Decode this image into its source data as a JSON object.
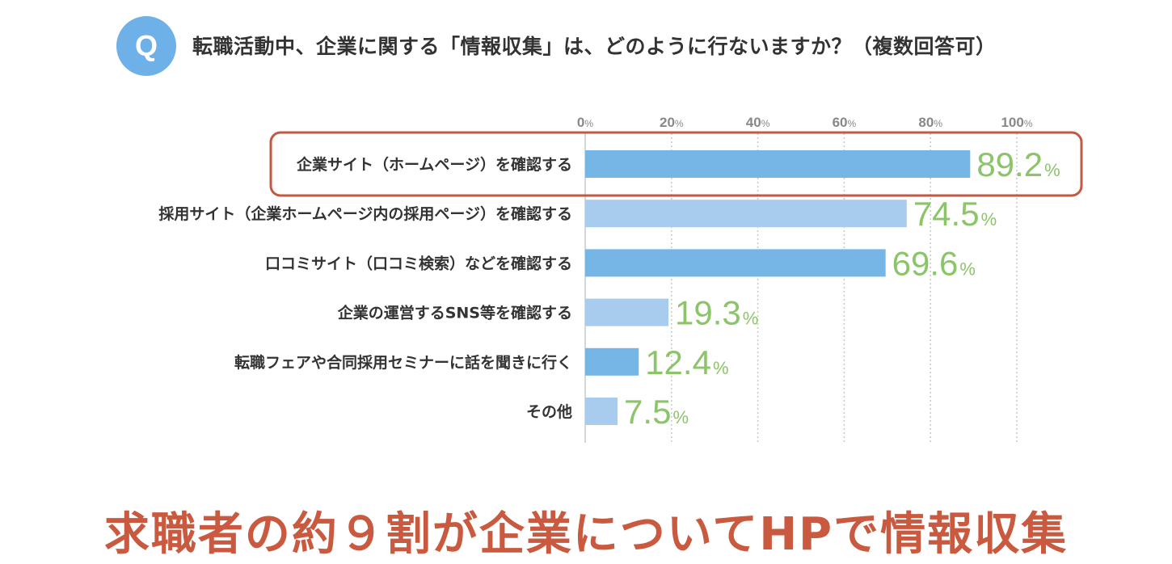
{
  "question_badge": "Q",
  "question": "転職活動中、企業に関する「情報収集」は、どのように行ないますか？（複数回答可）",
  "headline": "求職者の約９割が企業についてHPで情報収集",
  "colors": {
    "bar_dark": "#76b6e6",
    "bar_light": "#a8ccee",
    "value": "#8cc46a",
    "highlight": "#c05a45",
    "badge": "#6eb0e8"
  },
  "chart_data": {
    "type": "bar",
    "orientation": "horizontal",
    "categories": [
      "企業サイト（ホームページ）を確認する",
      "採用サイト（企業ホームページ内の採用ページ）を確認する",
      "口コミサイト（口コミ検索）などを確認する",
      "企業の運営するSNS等を確認する",
      "転職フェアや合同採用セミナーに話を聞きに行く",
      "その他"
    ],
    "values": [
      89.2,
      74.5,
      69.6,
      19.3,
      12.4,
      7.5
    ],
    "value_labels": [
      "89.2",
      "74.5",
      "69.6",
      "19.3",
      "12.4",
      "7.5"
    ],
    "value_unit": "%",
    "bar_shades": [
      "dark",
      "light",
      "dark",
      "light",
      "dark",
      "light"
    ],
    "highlighted_index": 0,
    "xlim": [
      0,
      100
    ],
    "xticks": [
      0,
      20,
      40,
      60,
      80,
      100
    ],
    "xtick_labels": [
      "0",
      "20",
      "40",
      "60",
      "80",
      "100"
    ],
    "xtick_unit": "%",
    "grid": "vertical-dotted"
  }
}
